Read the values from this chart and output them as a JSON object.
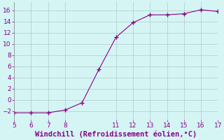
{
  "x": [
    5,
    6,
    7,
    8,
    9,
    10,
    11,
    12,
    13,
    14,
    15,
    16,
    17
  ],
  "y": [
    -2.3,
    -2.3,
    -2.3,
    -1.8,
    -0.5,
    5.5,
    11.2,
    13.8,
    15.2,
    15.2,
    15.4,
    16.1,
    15.8
  ],
  "line_color": "#880088",
  "marker": "+",
  "marker_size": 4,
  "marker_color": "#880088",
  "background_color": "#d5f5f5",
  "grid_color": "#b0c8c8",
  "xlabel": "Windchill (Refroidissement éolien,°C)",
  "xlabel_color": "#880088",
  "xlim": [
    5,
    17
  ],
  "ylim": [
    -3.5,
    17.5
  ],
  "xticks": [
    5,
    6,
    7,
    8,
    11,
    12,
    13,
    14,
    15,
    16,
    17
  ],
  "yticks": [
    -2,
    0,
    2,
    4,
    6,
    8,
    10,
    12,
    14,
    16
  ],
  "tick_color": "#880088",
  "tick_fontsize": 6.5,
  "xlabel_fontsize": 7.5
}
